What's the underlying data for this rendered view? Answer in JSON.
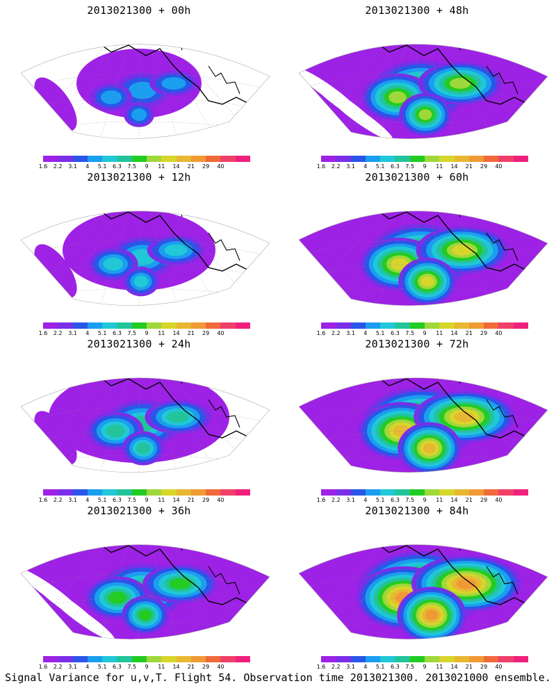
{
  "panels": [
    {
      "title": "2013021300 + 00h",
      "intensity": 0
    },
    {
      "title": "2013021300 + 48h",
      "intensity": 4
    },
    {
      "title": "2013021300 + 12h",
      "intensity": 1
    },
    {
      "title": "2013021300 + 60h",
      "intensity": 5
    },
    {
      "title": "2013021300 + 24h",
      "intensity": 2
    },
    {
      "title": "2013021300 + 72h",
      "intensity": 6
    },
    {
      "title": "2013021300 + 36h",
      "intensity": 3
    },
    {
      "title": "2013021300 + 84h",
      "intensity": 7
    }
  ],
  "colorbar": {
    "labels": [
      "1.6",
      "2.2",
      "3.1",
      "4",
      "5.1",
      "6.3",
      "7.5",
      "9",
      "11",
      "14",
      "21",
      "29",
      "40"
    ],
    "colors": [
      "#9e21e6",
      "#7a2ee8",
      "#2a55e8",
      "#1a9ef0",
      "#20c8d8",
      "#22c49a",
      "#22cc22",
      "#9fd83a",
      "#d8d62a",
      "#e8b832",
      "#f09a34",
      "#f06a3a",
      "#f0406a",
      "#f0207c"
    ]
  },
  "footer": "Signal Variance for u,v,T. Flight 54. Observation time 2013021300. 2013021000 ensemble."
}
